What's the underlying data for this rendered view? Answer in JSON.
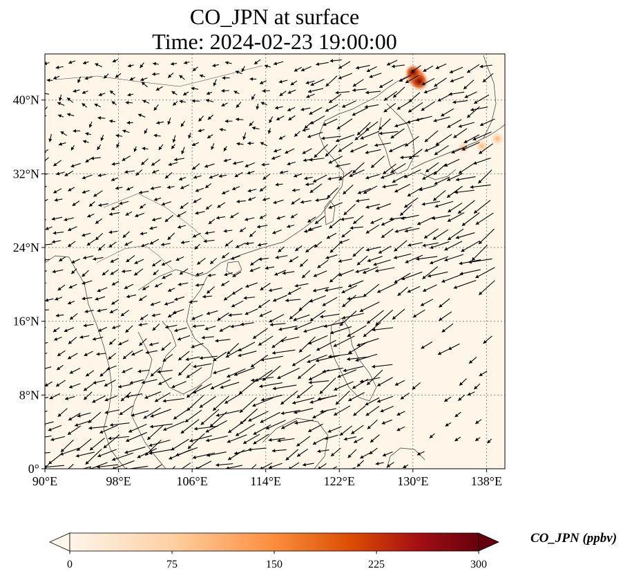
{
  "title": {
    "line1": "CO_JPN at surface",
    "line2": "Time: 2024-02-23 19:00:00"
  },
  "map": {
    "extent": {
      "lon_min": 90,
      "lon_max": 140,
      "lat_min": 0,
      "lat_max": 45
    },
    "gridlines": true,
    "background_color": "#fff5e8",
    "lon_ticks": [
      {
        "value": 90,
        "label": "90°E"
      },
      {
        "value": 98,
        "label": "98°E"
      },
      {
        "value": 106,
        "label": "106°E"
      },
      {
        "value": 114,
        "label": "114°E"
      },
      {
        "value": 122,
        "label": "122°E"
      },
      {
        "value": 130,
        "label": "130°E"
      },
      {
        "value": 138,
        "label": "138°E"
      }
    ],
    "lat_ticks": [
      {
        "value": 0,
        "label": "0°"
      },
      {
        "value": 8,
        "label": "8°N"
      },
      {
        "value": 16,
        "label": "16°N"
      },
      {
        "value": 24,
        "label": "24°N"
      },
      {
        "value": 32,
        "label": "32°N"
      },
      {
        "value": 40,
        "label": "40°N"
      }
    ],
    "hotspots": [
      {
        "lon": 130.3,
        "lat": 42.5,
        "value": 300
      },
      {
        "lon": 130.7,
        "lat": 42.0,
        "value": 240
      },
      {
        "lon": 130.0,
        "lat": 43.0,
        "value": 180
      },
      {
        "lon": 137.5,
        "lat": 35.0,
        "value": 90
      },
      {
        "lon": 139.2,
        "lat": 35.8,
        "value": 110
      },
      {
        "lon": 135.5,
        "lat": 34.8,
        "value": 70
      }
    ],
    "wind_field_note": ""
  },
  "colorbar": {
    "label": "CO_JPN (ppbv)",
    "min": 0,
    "max": 300,
    "extend": "both",
    "ticks": [
      {
        "value": 0,
        "label": "0"
      },
      {
        "value": 75,
        "label": "75"
      },
      {
        "value": 150,
        "label": "150"
      },
      {
        "value": 225,
        "label": "225"
      },
      {
        "value": 300,
        "label": "300"
      }
    ],
    "colors": [
      "#fff5eb",
      "#fdd0a2",
      "#fd8d3c",
      "#d94801",
      "#a50f15",
      "#67000d"
    ]
  }
}
